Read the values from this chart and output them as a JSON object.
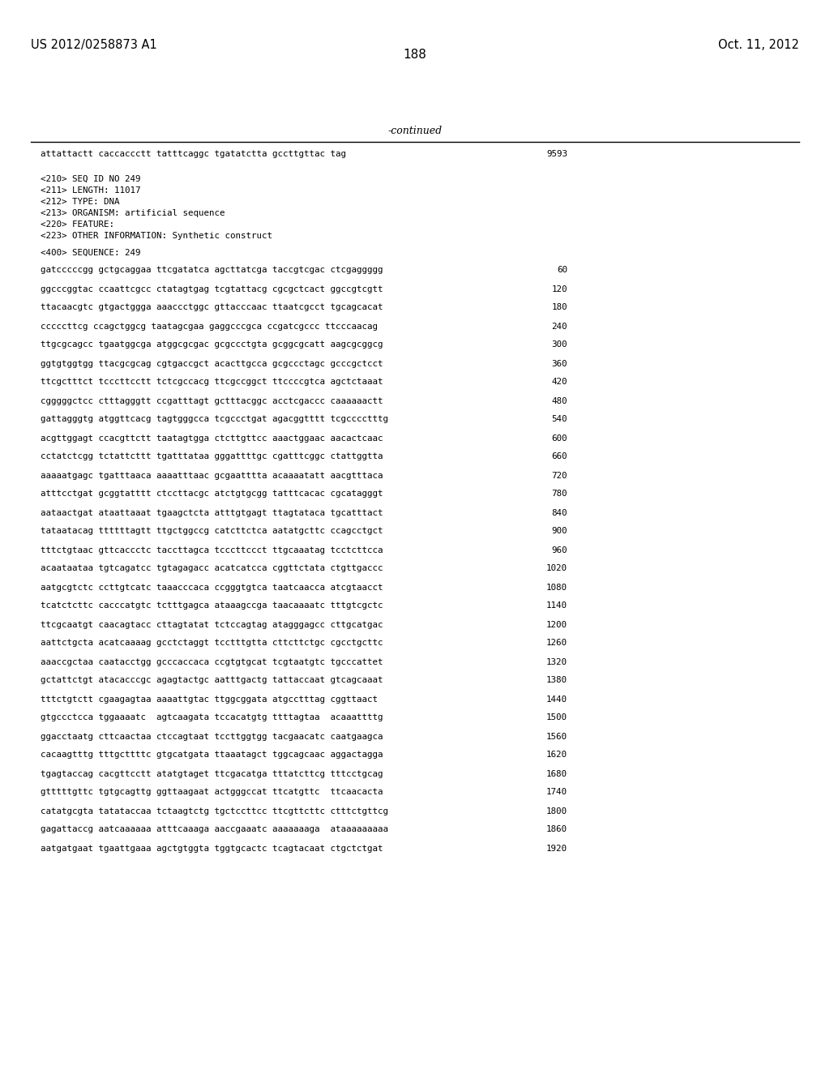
{
  "header_left": "US 2012/0258873 A1",
  "header_right": "Oct. 11, 2012",
  "page_number": "188",
  "continued_text": "-continued",
  "background_color": "#ffffff",
  "text_color": "#000000",
  "font_size_header": 10.5,
  "font_size_body": 7.8,
  "font_size_page": 11,
  "sequence_block": [
    {
      "type": "seq",
      "text": "attattactt caccaccctt tatttcaggc tgatatctta gccttgttac tag",
      "num": "9593"
    },
    {
      "type": "blank"
    },
    {
      "type": "blank"
    },
    {
      "type": "meta",
      "text": "<210> SEQ ID NO 249"
    },
    {
      "type": "meta",
      "text": "<211> LENGTH: 11017"
    },
    {
      "type": "meta",
      "text": "<212> TYPE: DNA"
    },
    {
      "type": "meta",
      "text": "<213> ORGANISM: artificial sequence"
    },
    {
      "type": "meta",
      "text": "<220> FEATURE:"
    },
    {
      "type": "meta",
      "text": "<223> OTHER INFORMATION: Synthetic construct"
    },
    {
      "type": "blank"
    },
    {
      "type": "meta",
      "text": "<400> SEQUENCE: 249"
    },
    {
      "type": "blank"
    },
    {
      "type": "seq",
      "text": "gatcccccgg gctgcaggaa ttcgatatca agcttatcga taccgtcgac ctcgaggggg",
      "num": "60"
    },
    {
      "type": "blank"
    },
    {
      "type": "seq",
      "text": "ggcccggtac ccaattcgcc ctatagtgag tcgtattacg cgcgctcact ggccgtcgtt",
      "num": "120"
    },
    {
      "type": "blank"
    },
    {
      "type": "seq",
      "text": "ttacaacgtc gtgactggga aaaccctggc gttacccaac ttaatcgcct tgcagcacat",
      "num": "180"
    },
    {
      "type": "blank"
    },
    {
      "type": "seq",
      "text": "cccccttcg ccagctggcg taatagcgaa gaggcccgca ccgatcgccc ttcccaacag",
      "num": "240"
    },
    {
      "type": "blank"
    },
    {
      "type": "seq",
      "text": "ttgcgcagcc tgaatggcga atggcgcgac gcgccctgta gcggcgcatt aagcgcggcg",
      "num": "300"
    },
    {
      "type": "blank"
    },
    {
      "type": "seq",
      "text": "ggtgtggtgg ttacgcgcag cgtgaccgct acacttgcca gcgccctagc gcccgctcct",
      "num": "360"
    },
    {
      "type": "blank"
    },
    {
      "type": "seq",
      "text": "ttcgctttct tcccttcctt tctcgccacg ttcgccggct ttccccgtca agctctaaat",
      "num": "420"
    },
    {
      "type": "blank"
    },
    {
      "type": "seq",
      "text": "cgggggctcc ctttagggtt ccgatttagt gctttacggc acctcgaccc caaaaaactt",
      "num": "480"
    },
    {
      "type": "blank"
    },
    {
      "type": "seq",
      "text": "gattagggtg atggttcacg tagtgggcca tcgccctgat agacggtttt tcgcccctttg",
      "num": "540"
    },
    {
      "type": "blank"
    },
    {
      "type": "seq",
      "text": "acgttggagt ccacgttctt taatagtgga ctcttgttcc aaactggaac aacactcaac",
      "num": "600"
    },
    {
      "type": "blank"
    },
    {
      "type": "seq",
      "text": "cctatctcgg tctattcttt tgatttataa gggattttgc cgatttcggc ctattggtta",
      "num": "660"
    },
    {
      "type": "blank"
    },
    {
      "type": "seq",
      "text": "aaaaatgagc tgatttaaca aaaatttaac gcgaatttta acaaaatatt aacgtttaca",
      "num": "720"
    },
    {
      "type": "blank"
    },
    {
      "type": "seq",
      "text": "atttcctgat gcggtatttt ctccttacgc atctgtgcgg tatttcacac cgcatagggt",
      "num": "780"
    },
    {
      "type": "blank"
    },
    {
      "type": "seq",
      "text": "aataactgat ataattaaat tgaagctcta atttgtgagt ttagtataca tgcatttact",
      "num": "840"
    },
    {
      "type": "blank"
    },
    {
      "type": "seq",
      "text": "tataatacag ttttttagtt ttgctggccg catcttctca aatatgcttc ccagcctgct",
      "num": "900"
    },
    {
      "type": "blank"
    },
    {
      "type": "seq",
      "text": "tttctgtaac gttcaccctc taccttagca tcccttccct ttgcaaatag tcctcttcca",
      "num": "960"
    },
    {
      "type": "blank"
    },
    {
      "type": "seq",
      "text": "acaataataa tgtcagatcc tgtagagacc acatcatcca cggttctata ctgttgaccc",
      "num": "1020"
    },
    {
      "type": "blank"
    },
    {
      "type": "seq",
      "text": "aatgcgtctc ccttgtcatc taaacccaca ccgggtgtca taatcaacca atcgtaacct",
      "num": "1080"
    },
    {
      "type": "blank"
    },
    {
      "type": "seq",
      "text": "tcatctcttc cacccatgtc tctttgagca ataaagccga taacaaaatc tttgtcgctc",
      "num": "1140"
    },
    {
      "type": "blank"
    },
    {
      "type": "seq",
      "text": "ttcgcaatgt caacagtacc cttagtatat tctccagtag atagggagcc cttgcatgac",
      "num": "1200"
    },
    {
      "type": "blank"
    },
    {
      "type": "seq",
      "text": "aattctgcta acatcaaaag gcctctaggt tcctttgtta cttcttctgc cgcctgcttc",
      "num": "1260"
    },
    {
      "type": "blank"
    },
    {
      "type": "seq",
      "text": "aaaccgctaa caatacctgg gcccaccaca ccgtgtgcat tcgtaatgtc tgcccattet",
      "num": "1320"
    },
    {
      "type": "blank"
    },
    {
      "type": "seq",
      "text": "gctattctgt atacacccgc agagtactgc aatttgactg tattaccaat gtcagcaaat",
      "num": "1380"
    },
    {
      "type": "blank"
    },
    {
      "type": "seq",
      "text": "tttctgtctt cgaagagtaa aaaattgtac ttggcggata atgcctttag cggttaact",
      "num": "1440"
    },
    {
      "type": "blank"
    },
    {
      "type": "seq",
      "text": "gtgccctcca tggaaaatc  agtcaagata tccacatgtg ttttagtaa  acaaattttg",
      "num": "1500"
    },
    {
      "type": "blank"
    },
    {
      "type": "seq",
      "text": "ggacctaatg cttcaactaa ctccagtaat tccttggtgg tacgaacatc caatgaagca",
      "num": "1560"
    },
    {
      "type": "blank"
    },
    {
      "type": "seq",
      "text": "cacaagtttg tttgcttttc gtgcatgata ttaaatagct tggcagcaac aggactagga",
      "num": "1620"
    },
    {
      "type": "blank"
    },
    {
      "type": "seq",
      "text": "tgagtaccag cacgttcctt atatgtaget ttcgacatga tttatcttcg tttcctgcag",
      "num": "1680"
    },
    {
      "type": "blank"
    },
    {
      "type": "seq",
      "text": "gtttttgttc tgtgcagttg ggttaagaat actgggccat ttcatgttc  ttcaacacta",
      "num": "1740"
    },
    {
      "type": "blank"
    },
    {
      "type": "seq",
      "text": "catatgcgta tatataccaa tctaagtctg tgctccttcc ttcgttcttc ctttctgttcg",
      "num": "1800"
    },
    {
      "type": "blank"
    },
    {
      "type": "seq",
      "text": "gagattaccg aatcaaaaaa atttcaaaga aaccgaaatc aaaaaaaga  ataaaaaaaaa",
      "num": "1860"
    },
    {
      "type": "blank"
    },
    {
      "type": "seq",
      "text": "aatgatgaat tgaattgaaa agctgtggta tggtgcactc tcagtacaat ctgctctgat",
      "num": "1920"
    }
  ]
}
